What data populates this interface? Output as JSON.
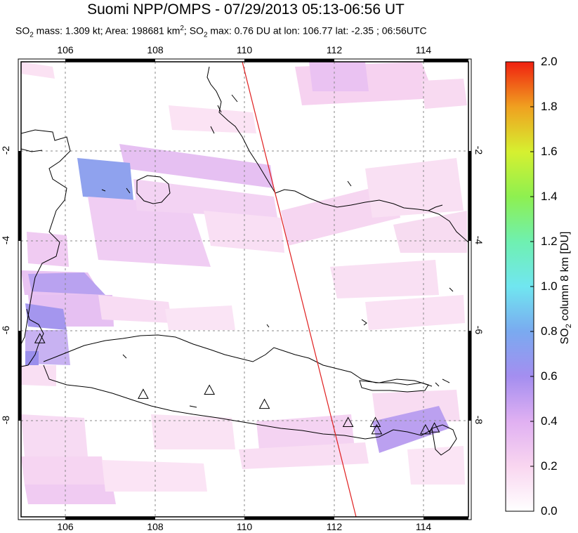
{
  "title": "Suomi NPP/OMPS - 07/29/2013 05:13-06:56 UT",
  "subtitle": {
    "so2_mass_prefix": "SO",
    "so2_mass_sub": "2",
    "so2_mass_text": " mass: 1.309 kt; Area: 198681 km",
    "area_sup": "2",
    "sep": "; SO",
    "so2_max_sub": "2",
    "so2_max_text": " max: 0.76 DU at lon: 106.77 lat: -2.35 ; 06:56UTC"
  },
  "map": {
    "lon_range": [
      105,
      115
    ],
    "lat_range": [
      -10,
      0
    ],
    "lon_ticks": [
      "106",
      "108",
      "110",
      "112",
      "114"
    ],
    "lat_ticks": [
      "-2",
      "-4",
      "-6",
      "-8"
    ],
    "grid": true,
    "orbit_track_color": "#e02020",
    "volcano_marker": "triangle-icon",
    "volcanoes": [
      {
        "lon": 105.42,
        "lat": -6.1
      },
      {
        "lon": 107.73,
        "lat": -7.32
      },
      {
        "lon": 109.21,
        "lat": -7.23
      },
      {
        "lon": 110.44,
        "lat": -7.54
      },
      {
        "lon": 112.31,
        "lat": -7.94
      },
      {
        "lon": 112.92,
        "lat": -7.94
      },
      {
        "lon": 112.95,
        "lat": -8.1
      },
      {
        "lon": 114.04,
        "lat": -8.1
      },
      {
        "lon": 114.24,
        "lat": -8.06
      }
    ]
  },
  "colorbar": {
    "ticks": [
      "2.0",
      "1.8",
      "1.6",
      "1.4",
      "1.2",
      "1.0",
      "0.8",
      "0.6",
      "0.4",
      "0.2",
      "0.0"
    ],
    "label_prefix": "SO",
    "label_sub": "2",
    "label_text": " column 8 km [DU]",
    "colors": [
      "#ffffff",
      "#f9d6f0",
      "#e2b2f2",
      "#a48ef0",
      "#7aaaf0",
      "#70e6f0",
      "#6ff0b0",
      "#8ef050",
      "#d6f030",
      "#f0c020",
      "#f07020",
      "#f02010"
    ]
  }
}
